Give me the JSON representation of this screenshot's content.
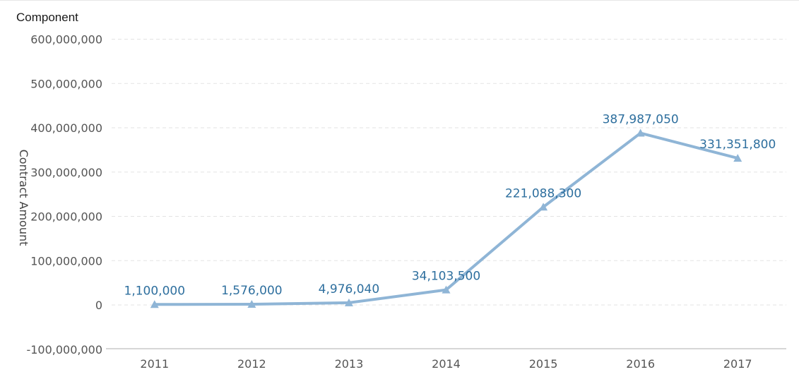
{
  "chart_title": "Component",
  "colors": {
    "line": "#8fb5d6",
    "data_label": "#2e6f9e",
    "grid": "#e3e3e3",
    "axis": "#c8c8c8"
  },
  "chart_data": {
    "type": "line",
    "x": [
      "2011",
      "2012",
      "2013",
      "2014",
      "2015",
      "2016",
      "2017"
    ],
    "series": [
      {
        "values": [
          1100000,
          1576000,
          4976040,
          34103500,
          221088300,
          387987050,
          331351800
        ],
        "labels": [
          "1,100,000",
          "1,576,000",
          "4,976,040",
          "34,103,500",
          "221,088,300",
          "387,987,050",
          "331,351,800"
        ],
        "marker": "triangle"
      }
    ],
    "ylabel": "Contract Amount",
    "xlabel": "",
    "ylim": [
      -100000000,
      600000000
    ],
    "yticks": [
      600000000,
      500000000,
      400000000,
      300000000,
      200000000,
      100000000,
      0,
      -100000000
    ],
    "ytick_labels": [
      "600,000,000",
      "500,000,000",
      "400,000,000",
      "300,000,000",
      "200,000,000",
      "100,000,000",
      "0",
      "-100,000,000"
    ],
    "grid": true
  }
}
